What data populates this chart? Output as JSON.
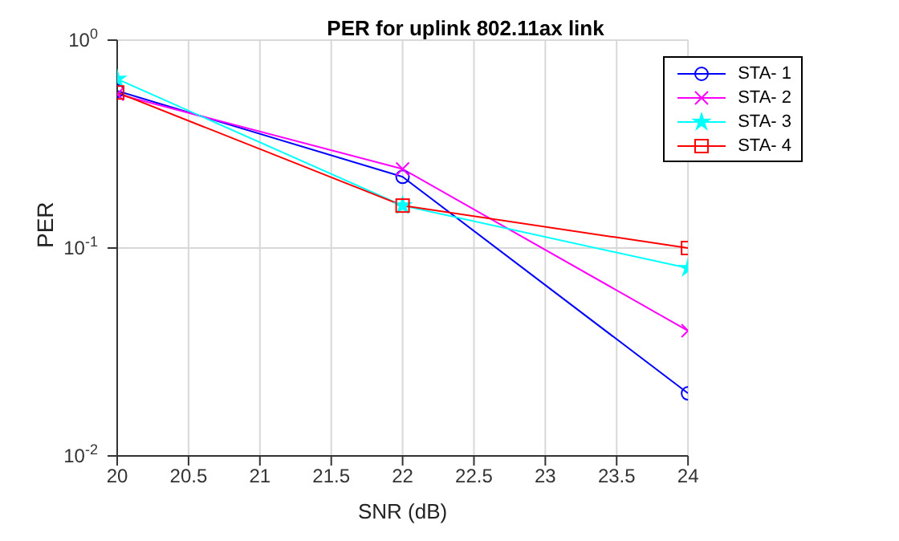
{
  "chart_data": {
    "type": "line",
    "title": "PER for uplink 802.11ax link",
    "xlabel": "SNR (dB)",
    "ylabel": "PER",
    "x": [
      20,
      22,
      24
    ],
    "series": [
      {
        "name": "STA- 1",
        "color": "#0000ff",
        "marker": "circle",
        "values": [
          0.57,
          0.22,
          0.02
        ]
      },
      {
        "name": "STA- 2",
        "color": "#ff00ff",
        "marker": "cross",
        "values": [
          0.55,
          0.24,
          0.04
        ]
      },
      {
        "name": "STA- 3",
        "color": "#00ffff",
        "marker": "star",
        "values": [
          0.65,
          0.16,
          0.08
        ]
      },
      {
        "name": "STA- 4",
        "color": "#ff0000",
        "marker": "square",
        "values": [
          0.56,
          0.16,
          0.1
        ]
      }
    ],
    "log": "y",
    "xlim": [
      20,
      24
    ],
    "xticks": [
      20,
      20.5,
      21,
      21.5,
      22,
      22.5,
      23,
      23.5,
      24
    ],
    "ylim": [
      0.01,
      1
    ],
    "yticks": [
      {
        "value": 0.01,
        "label": "10$^{-2}$"
      },
      {
        "value": 0.1,
        "label": "10$^{-1}$"
      },
      {
        "value": 1,
        "label": "10$^{0}$"
      }
    ],
    "grid": true,
    "legend": "top right",
    "line_style": "solid"
  }
}
